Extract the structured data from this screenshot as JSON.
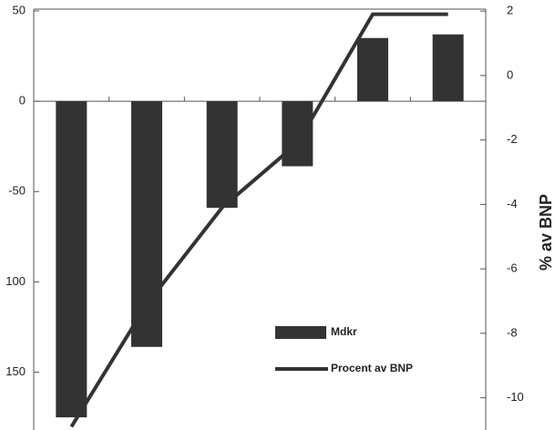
{
  "chart_data": {
    "type": "bar-line",
    "categories": [
      null,
      null,
      null,
      null,
      null,
      null
    ],
    "series": [
      {
        "name": "Mdkr",
        "type": "bar",
        "color": "#333333",
        "values": [
          -175,
          -136,
          -59,
          -36,
          35,
          37
        ]
      },
      {
        "name": "Procent av BNP",
        "type": "line",
        "axis": "y2",
        "color": "#333333",
        "values": [
          -10.9,
          -7.1,
          -4.1,
          -2.1,
          1.9,
          1.9
        ]
      }
    ],
    "ylim": [
      -182,
      51
    ],
    "yticks": [
      50,
      0,
      -50,
      {
        "value": -100,
        "label": "100"
      },
      {
        "value": -150,
        "label": "150"
      }
    ],
    "y2lim": [
      -11,
      2.06
    ],
    "y2ticks": [
      2,
      0,
      -2,
      -4,
      -6,
      -8,
      -10
    ],
    "y2label": "% av BNP"
  }
}
